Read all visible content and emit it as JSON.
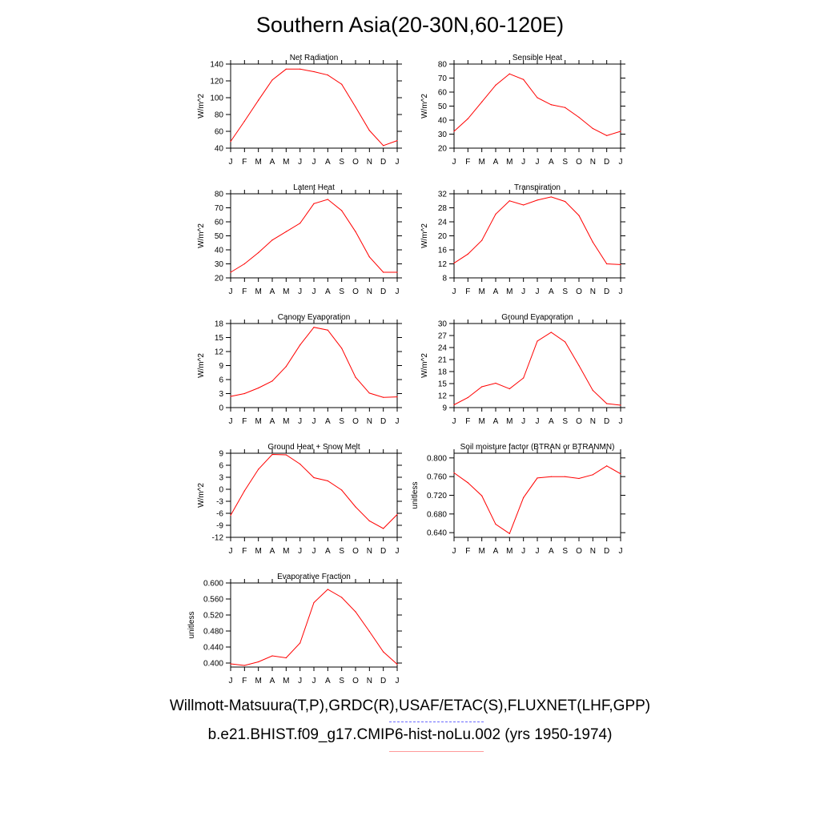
{
  "title": "Southern Asia(20-30N,60-120E)",
  "legend": {
    "observations": "Willmott-Matsuura(T,P),GRDC(R),USAF/ETAC(S),FLUXNET(LHF,GPP)",
    "model": "b.e21.BHIST.f09_g17.CMIP6-hist-noLu.002 (yrs 1950-1974)",
    "observations_color": "#6b6bff",
    "model_color": "#ff0000"
  },
  "chart_data": [
    {
      "type": "line",
      "title": "Net Radiation",
      "ylabel": "W/m^2",
      "x": [
        "J",
        "F",
        "M",
        "A",
        "M",
        "J",
        "J",
        "A",
        "S",
        "O",
        "N",
        "D",
        "J"
      ],
      "ylim": [
        40,
        140
      ],
      "yticks": [
        "40",
        "60",
        "80",
        "100",
        "120",
        "140"
      ],
      "series": [
        {
          "values": [
            48,
            72,
            97,
            121,
            134,
            134,
            131,
            127,
            116,
            89,
            61,
            43,
            49
          ]
        }
      ]
    },
    {
      "type": "line",
      "title": "Sensible Heat",
      "ylabel": "W/m^2",
      "x": [
        "J",
        "F",
        "M",
        "A",
        "M",
        "J",
        "J",
        "A",
        "S",
        "O",
        "N",
        "D",
        "J"
      ],
      "ylim": [
        20,
        80
      ],
      "yticks": [
        "20",
        "30",
        "40",
        "50",
        "60",
        "70",
        "80"
      ],
      "series": [
        {
          "values": [
            32,
            41,
            53,
            65,
            73,
            69,
            56,
            51,
            49,
            42,
            34,
            29,
            32
          ]
        }
      ]
    },
    {
      "type": "line",
      "title": "Latent Heat",
      "ylabel": "W/m^2",
      "x": [
        "J",
        "F",
        "M",
        "A",
        "M",
        "J",
        "J",
        "A",
        "S",
        "O",
        "N",
        "D",
        "J"
      ],
      "ylim": [
        20,
        80
      ],
      "yticks": [
        "20",
        "30",
        "40",
        "50",
        "60",
        "70",
        "80"
      ],
      "series": [
        {
          "values": [
            24,
            30,
            38,
            47,
            53,
            59,
            73,
            76,
            68,
            53,
            35,
            24,
            24
          ]
        }
      ]
    },
    {
      "type": "line",
      "title": "Transpiration",
      "ylabel": "W/m^2",
      "x": [
        "J",
        "F",
        "M",
        "A",
        "M",
        "J",
        "J",
        "A",
        "S",
        "O",
        "N",
        "D",
        "J"
      ],
      "ylim": [
        8,
        32
      ],
      "yticks": [
        "8",
        "12",
        "16",
        "20",
        "24",
        "28",
        "32"
      ],
      "series": [
        {
          "values": [
            12.2,
            14.8,
            18.7,
            26.2,
            30,
            28.8,
            30.2,
            31.1,
            29.8,
            25.8,
            18.2,
            12,
            11.8
          ]
        }
      ]
    },
    {
      "type": "line",
      "title": "Canopy Evaporation",
      "ylabel": "W/m^2",
      "x": [
        "J",
        "F",
        "M",
        "A",
        "M",
        "J",
        "J",
        "A",
        "S",
        "O",
        "N",
        "D",
        "J"
      ],
      "ylim": [
        0,
        18
      ],
      "yticks": [
        "0",
        "3",
        "6",
        "9",
        "12",
        "15",
        "18"
      ],
      "series": [
        {
          "values": [
            2.4,
            3.0,
            4.2,
            5.7,
            8.8,
            13.4,
            17.2,
            16.6,
            12.7,
            6.5,
            3.1,
            2.2,
            2.3
          ]
        }
      ]
    },
    {
      "type": "line",
      "title": "Ground Evaporation",
      "ylabel": "W/m^2",
      "x": [
        "J",
        "F",
        "M",
        "A",
        "M",
        "J",
        "J",
        "A",
        "S",
        "O",
        "N",
        "D",
        "J"
      ],
      "ylim": [
        9,
        30
      ],
      "yticks": [
        "9",
        "12",
        "15",
        "18",
        "21",
        "24",
        "27",
        "30"
      ],
      "series": [
        {
          "values": [
            9.7,
            11.5,
            14.2,
            15.1,
            13.7,
            16.4,
            25.6,
            27.8,
            25.4,
            19.5,
            13.3,
            10,
            9.6
          ]
        }
      ]
    },
    {
      "type": "line",
      "title": "Ground Heat + Snow Melt",
      "ylabel": "W/m^2",
      "x": [
        "J",
        "F",
        "M",
        "A",
        "M",
        "J",
        "J",
        "A",
        "S",
        "O",
        "N",
        "D",
        "J"
      ],
      "ylim": [
        -12,
        9
      ],
      "yticks": [
        "-12",
        "-9",
        "-6",
        "-3",
        "0",
        "3",
        "6",
        "9"
      ],
      "series": [
        {
          "values": [
            -6.5,
            -0.4,
            5,
            8.7,
            8.6,
            6.3,
            2.9,
            2.1,
            -0.2,
            -4.4,
            -7.9,
            -9.8,
            -6.3
          ]
        }
      ]
    },
    {
      "type": "line",
      "title": "Soil moisture factor (BTRAN or BTRANMN)",
      "ylabel": "unitless",
      "x": [
        "J",
        "F",
        "M",
        "A",
        "M",
        "J",
        "J",
        "A",
        "S",
        "O",
        "N",
        "D",
        "J"
      ],
      "ylim": [
        0.63,
        0.81
      ],
      "yticks": [
        "0.640",
        "0.680",
        "0.720",
        "0.760",
        "0.800"
      ],
      "series": [
        {
          "values": [
            0.768,
            0.747,
            0.719,
            0.658,
            0.638,
            0.715,
            0.757,
            0.76,
            0.76,
            0.756,
            0.764,
            0.783,
            0.766
          ]
        }
      ]
    },
    {
      "type": "line",
      "title": "Evaporative Fraction",
      "ylabel": "unitless",
      "x": [
        "J",
        "F",
        "M",
        "A",
        "M",
        "J",
        "J",
        "A",
        "S",
        "O",
        "N",
        "D",
        "J"
      ],
      "ylim": [
        0.39,
        0.6
      ],
      "yticks": [
        "0.400",
        "0.440",
        "0.480",
        "0.520",
        "0.560",
        "0.600"
      ],
      "series": [
        {
          "values": [
            0.398,
            0.394,
            0.403,
            0.418,
            0.413,
            0.45,
            0.551,
            0.584,
            0.564,
            0.528,
            0.479,
            0.428,
            0.397
          ]
        }
      ]
    }
  ]
}
